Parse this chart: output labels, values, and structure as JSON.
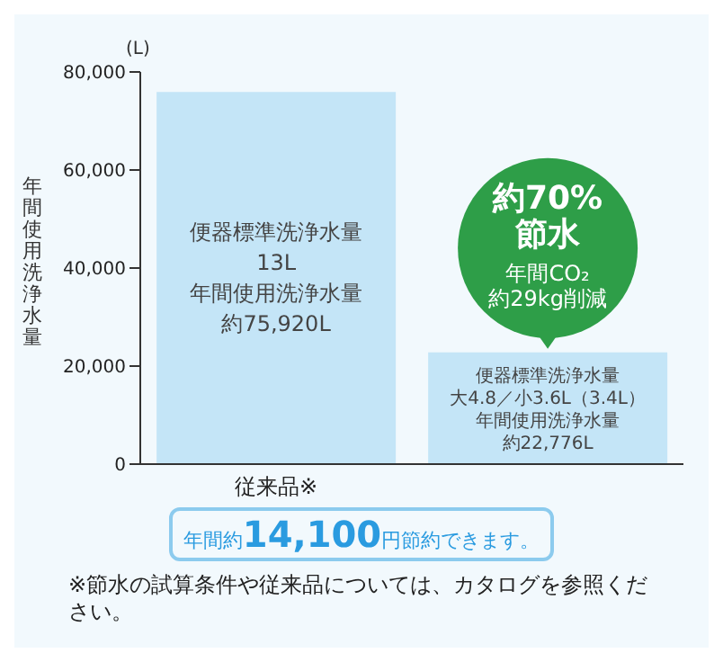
{
  "chart_data": {
    "type": "bar",
    "ylabel": "年間使用洗浄水量",
    "categories": [
      "従来品※",
      null
    ],
    "values": [
      75920,
      22776
    ],
    "color": "#c4e5f7",
    "ylim": [
      0,
      80000
    ],
    "yticks": [
      0,
      {
        "value": 20000,
        "label": "20,000"
      },
      {
        "value": 40000,
        "label": "40,000"
      },
      {
        "value": 60000,
        "label": "60,000"
      },
      {
        "value": 80000,
        "label": "80,000"
      }
    ],
    "value_labels": [
      "約75,920L",
      "約22,776L"
    ],
    "annotations": [
      "(L)",
      "便器標準洗浄水量",
      "13L",
      "年間使用洗浄水量",
      "便器標準洗浄水量",
      "大4.8／小3.6L（3.4L）",
      "年間使用洗浄水量",
      "約70%",
      "節水",
      "年間CO₂",
      "約29kg削減",
      "年間約14,100円節約できます。",
      "※節水の試算条件や従来品については、カタログを参照ください。"
    ]
  }
}
